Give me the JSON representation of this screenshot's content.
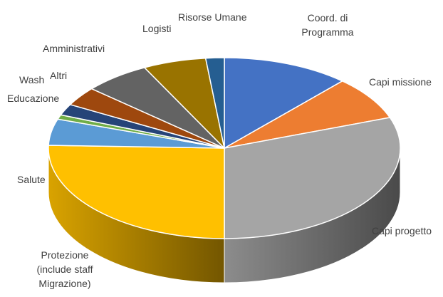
{
  "chart_data": {
    "type": "pie3d",
    "categories": [
      "Coord. di Programma",
      "Capi missione",
      "Capi progetto",
      "Protezione (include staff Migrazione)",
      "Salute",
      "Educazione",
      "Wash",
      "Altri",
      "Amministrativi",
      "Logisti",
      "Risorse Umane"
    ],
    "values": [
      11.7,
      7.8,
      30.5,
      25.5,
      4.7,
      0.8,
      2,
      3.4,
      6.1,
      5.8,
      1.7
    ],
    "colors": [
      "#4472c4",
      "#ed7d31",
      "#a5a5a5",
      "#ffc000",
      "#5b9bd5",
      "#70ad47",
      "#264478",
      "#9e480e",
      "#636363",
      "#997300",
      "#255e91"
    ]
  }
}
